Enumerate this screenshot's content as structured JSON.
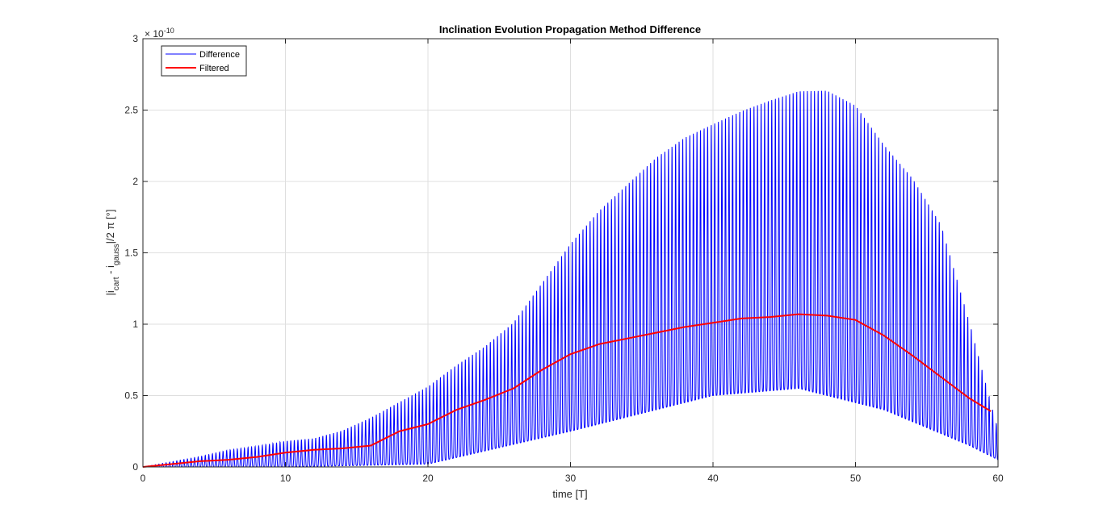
{
  "chart_data": {
    "type": "line",
    "title": "Inclination Evolution Propagation Method Difference",
    "xlabel": "time [T]",
    "ylabel": {
      "prefix": "|i",
      "sub1": "cart",
      "mid": " - i",
      "sub2": "gauss",
      "suffix": "|/2 π [°]"
    },
    "y_exponent_label": {
      "base": "× 10",
      "exp": "-10"
    },
    "xlim": [
      0,
      60
    ],
    "ylim": [
      0,
      3
    ],
    "x_ticks": [
      0,
      10,
      20,
      30,
      40,
      50,
      60
    ],
    "y_ticks": [
      0,
      0.5,
      1,
      1.5,
      2,
      2.5,
      3
    ],
    "x_tick_labels": [
      "0",
      "10",
      "20",
      "30",
      "40",
      "50",
      "60"
    ],
    "y_tick_labels": [
      "0",
      "0.5",
      "1",
      "1.5",
      "2",
      "2.5",
      "3"
    ],
    "grid": true,
    "legend_position": "top-left",
    "series": [
      {
        "name": "Difference",
        "color": "#0000ff",
        "period": 0.5,
        "envelope": {
          "x": [
            0,
            2,
            4,
            6,
            8,
            10,
            12,
            14,
            16,
            18,
            20,
            22,
            24,
            26,
            28,
            30,
            32,
            34,
            36,
            38,
            40,
            42,
            44,
            46,
            48,
            50,
            52,
            54,
            56,
            58,
            60
          ],
          "y": [
            0,
            0.04,
            0.08,
            0.13,
            0.16,
            0.2,
            0.22,
            0.28,
            0.38,
            0.5,
            0.62,
            0.78,
            0.92,
            1.1,
            1.4,
            1.7,
            1.95,
            2.15,
            2.35,
            2.5,
            2.6,
            2.7,
            2.78,
            2.85,
            2.86,
            2.75,
            2.45,
            2.2,
            1.85,
            1.1,
            0.28
          ]
        },
        "floor": {
          "x": [
            0,
            10,
            20,
            30,
            40,
            46,
            52,
            58,
            60
          ],
          "y": [
            0,
            0,
            0.02,
            0.25,
            0.5,
            0.55,
            0.4,
            0.15,
            0.05
          ]
        }
      },
      {
        "name": "Filtered",
        "color": "#ff0000",
        "x": [
          0,
          2,
          4,
          6,
          8,
          10,
          12,
          14,
          16,
          18,
          20,
          22,
          24,
          26,
          28,
          30,
          32,
          34,
          36,
          38,
          40,
          42,
          44,
          46,
          48,
          50,
          52,
          54,
          56,
          58,
          59.5
        ],
        "y": [
          0,
          0.02,
          0.04,
          0.05,
          0.07,
          0.1,
          0.12,
          0.13,
          0.15,
          0.25,
          0.3,
          0.4,
          0.47,
          0.55,
          0.68,
          0.79,
          0.86,
          0.9,
          0.94,
          0.98,
          1.01,
          1.04,
          1.05,
          1.07,
          1.06,
          1.03,
          0.92,
          0.78,
          0.63,
          0.48,
          0.39
        ]
      }
    ]
  }
}
